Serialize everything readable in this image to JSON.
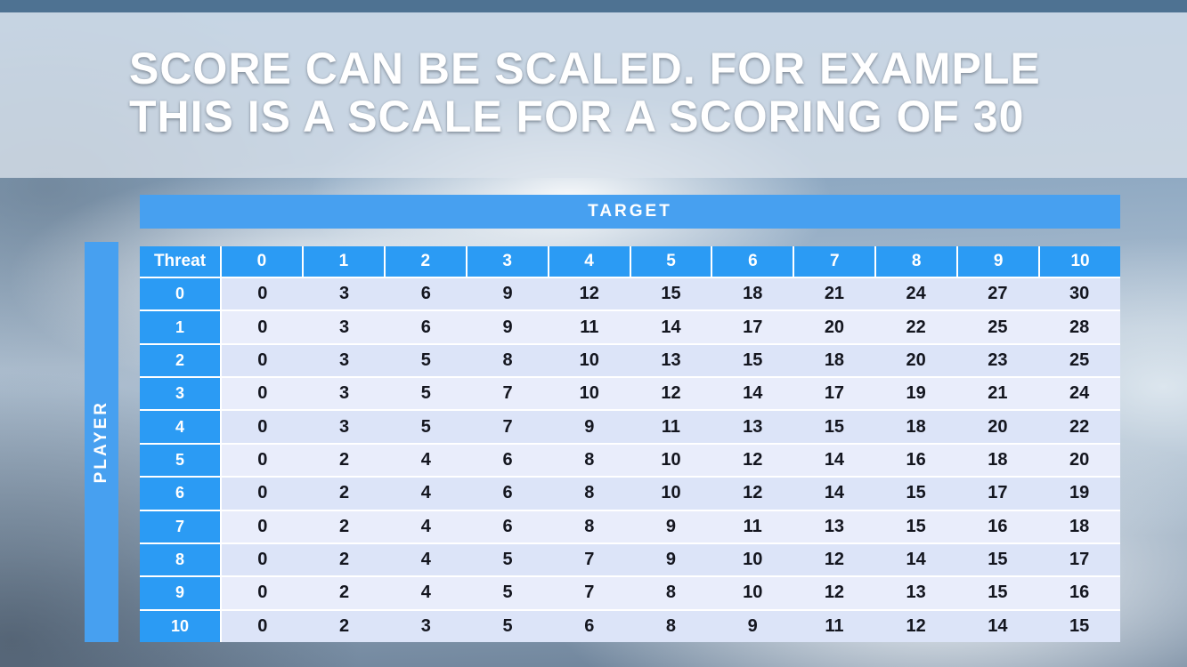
{
  "slide": {
    "title_line1": "SCORE CAN BE SCALED. FOR EXAMPLE",
    "title_line2": "THIS IS A SCALE FOR A SCORING OF 30"
  },
  "chart_data": {
    "type": "table",
    "title": "SCORE CAN BE SCALED. FOR EXAMPLE THIS IS A SCALE FOR A SCORING OF 30",
    "column_group_label": "TARGET",
    "row_group_label": "PLAYER",
    "corner_label": "Threat",
    "columns": [
      "0",
      "1",
      "2",
      "3",
      "4",
      "5",
      "6",
      "7",
      "8",
      "9",
      "10"
    ],
    "rows": [
      {
        "label": "0",
        "values": [
          0,
          3,
          6,
          9,
          12,
          15,
          18,
          21,
          24,
          27,
          30
        ]
      },
      {
        "label": "1",
        "values": [
          0,
          3,
          6,
          9,
          11,
          14,
          17,
          20,
          22,
          25,
          28
        ]
      },
      {
        "label": "2",
        "values": [
          0,
          3,
          5,
          8,
          10,
          13,
          15,
          18,
          20,
          23,
          25
        ]
      },
      {
        "label": "3",
        "values": [
          0,
          3,
          5,
          7,
          10,
          12,
          14,
          17,
          19,
          21,
          24
        ]
      },
      {
        "label": "4",
        "values": [
          0,
          3,
          5,
          7,
          9,
          11,
          13,
          15,
          18,
          20,
          22
        ]
      },
      {
        "label": "5",
        "values": [
          0,
          2,
          4,
          6,
          8,
          10,
          12,
          14,
          16,
          18,
          20
        ]
      },
      {
        "label": "6",
        "values": [
          0,
          2,
          4,
          6,
          8,
          10,
          12,
          14,
          15,
          17,
          19
        ]
      },
      {
        "label": "7",
        "values": [
          0,
          2,
          4,
          6,
          8,
          9,
          11,
          13,
          15,
          16,
          18
        ]
      },
      {
        "label": "8",
        "values": [
          0,
          2,
          4,
          5,
          7,
          9,
          10,
          12,
          14,
          15,
          17
        ]
      },
      {
        "label": "9",
        "values": [
          0,
          2,
          4,
          5,
          7,
          8,
          10,
          12,
          13,
          15,
          16
        ]
      },
      {
        "label": "10",
        "values": [
          0,
          2,
          3,
          5,
          6,
          8,
          9,
          11,
          12,
          14,
          15
        ]
      }
    ]
  },
  "colors": {
    "top_strip": "#4e7292",
    "axis_bar_blue": "#47a0f0",
    "header_blue": "#2b9bf4",
    "row_band_even": "#dce4f8",
    "row_band_odd": "#e9edfb",
    "cell_text": "#14161f",
    "title_text": "#ffffff"
  }
}
